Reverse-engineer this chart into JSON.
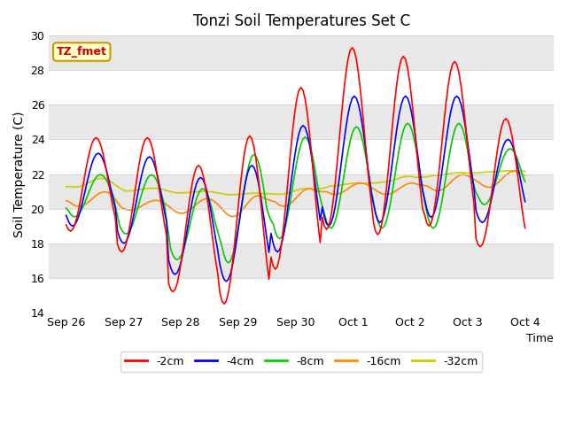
{
  "title": "Tonzi Soil Temperatures Set C",
  "xlabel": "Time",
  "ylabel": "Soil Temperature (C)",
  "ylim": [
    14,
    30
  ],
  "yticks": [
    14,
    16,
    18,
    20,
    22,
    24,
    26,
    28,
    30
  ],
  "x_tick_labels": [
    "Sep 26",
    "Sep 27",
    "Sep 28",
    "Sep 29",
    "Sep 30",
    "Oct 1",
    "Oct 2",
    "Oct 3",
    "Oct 4"
  ],
  "annotation_text": "TZ_fmet",
  "annotation_color": "#cc0000",
  "annotation_bg": "#ffffcc",
  "annotation_border": "#cc9900",
  "colors": {
    "-2cm": "#ff0000",
    "-4cm": "#0000ff",
    "-8cm": "#00cc00",
    "-16cm": "#ff8800",
    "-32cm": "#cccc00"
  },
  "legend_labels": [
    "-2cm",
    "-4cm",
    "-8cm",
    "-16cm",
    "-32cm"
  ],
  "background_color": "#e8e8e8",
  "band_color1": "#e0e0e0",
  "band_color2": "#f0f0f0"
}
